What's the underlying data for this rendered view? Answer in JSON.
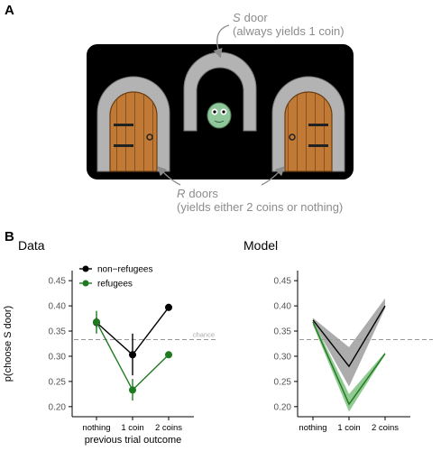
{
  "panel_a": {
    "letter": "A",
    "s_door_title": "door",
    "s_door_letter": "S",
    "s_door_subtitle": "(always yields 1 coin)",
    "r_doors_letter": "R",
    "r_doors_title": "doors",
    "r_doors_subtitle": "(yields either 2 coins or nothing)",
    "colors": {
      "screen": "#000000",
      "stone": "#b3b3b3",
      "wood": "#c07a35",
      "monster": "#8fc79a",
      "annotation": "#8c8c8c"
    }
  },
  "panel_b": {
    "letter": "B"
  },
  "chart_data": [
    {
      "type": "line",
      "title": "Data",
      "xlabel": "previous trial outcome",
      "ylabel": "p(choose S door)",
      "categories": [
        "nothing",
        "1 coin",
        "2 coins"
      ],
      "ylim": [
        0.18,
        0.47
      ],
      "yticks": [
        "0.20",
        "0.25",
        "0.30",
        "0.35",
        "0.40",
        "0.45"
      ],
      "reference_line": {
        "label": "chance",
        "value": 0.333
      },
      "legend_position": "top-left",
      "series": [
        {
          "name": "non−refugees",
          "color": "#000000",
          "values": [
            0.367,
            0.303,
            0.397
          ],
          "err_low": [
            0.357,
            0.262,
            0.39
          ],
          "err_high": [
            0.377,
            0.345,
            0.404
          ]
        },
        {
          "name": "refugees",
          "color": "#1e7a1e",
          "values": [
            0.368,
            0.233,
            0.303
          ],
          "err_low": [
            0.345,
            0.212,
            0.3
          ],
          "err_high": [
            0.39,
            0.255,
            0.306
          ]
        }
      ]
    },
    {
      "type": "area",
      "title": "Model",
      "xlabel": "",
      "ylabel": "",
      "categories": [
        "nothing",
        "1 coin",
        "2 coins"
      ],
      "ylim": [
        0.18,
        0.47
      ],
      "yticks": [
        "0.20",
        "0.25",
        "0.30",
        "0.35",
        "0.40",
        "0.45"
      ],
      "reference_line": {
        "label": "",
        "value": 0.333
      },
      "series": [
        {
          "color": "#000000",
          "band_color": "#9e9e9e",
          "values": [
            0.372,
            0.28,
            0.4
          ],
          "band_low": [
            0.368,
            0.24,
            0.395
          ],
          "band_high": [
            0.376,
            0.318,
            0.415
          ]
        },
        {
          "color": "#1e7a1e",
          "band_color": "#7fbf7f",
          "values": [
            0.368,
            0.205,
            0.305
          ],
          "band_low": [
            0.362,
            0.19,
            0.303
          ],
          "band_high": [
            0.372,
            0.225,
            0.308
          ]
        }
      ]
    }
  ]
}
